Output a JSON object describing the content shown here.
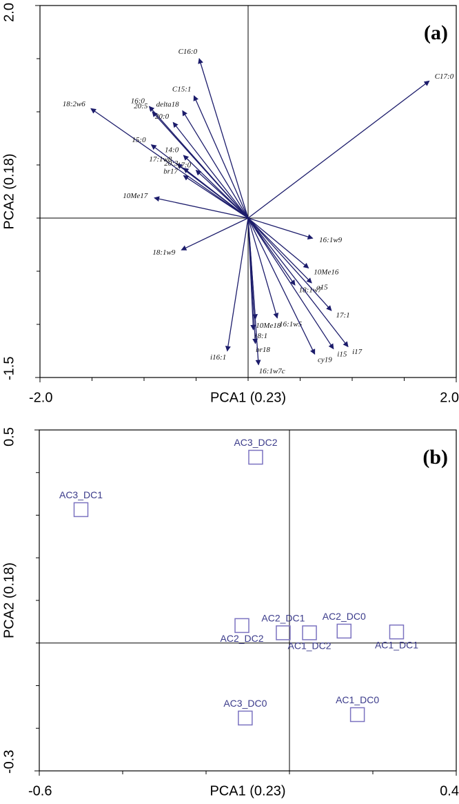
{
  "chart_data": [
    {
      "type": "biplot",
      "annotation": "(a)",
      "xlabel": "PCA1 (0.23)",
      "ylabel": "PCA2 (0.18)",
      "color": "#1c1c6b",
      "xlim": [
        -2,
        2
      ],
      "ylim": [
        -1.5,
        2
      ],
      "xticks": [
        {
          "value": -2,
          "label": "-2.0"
        },
        {
          "value": 2,
          "label": "2.0"
        }
      ],
      "yticks": [
        {
          "value": -1.5,
          "label": "-1.5"
        },
        {
          "value": 2,
          "label": "2.0"
        }
      ],
      "xminorticks": [
        -1.5,
        -1,
        -0.5,
        0,
        0.5,
        1,
        1.5
      ],
      "yminorticks": [
        -1,
        -0.5,
        0,
        0.5,
        1,
        1.5
      ],
      "names": [
        "C16:0",
        "C17:0",
        "C15:1",
        "16:0",
        "20:5",
        "delta18",
        "18:2w6",
        "20:0",
        "15:0",
        "14:0",
        "17:1w8",
        "20:3",
        "17:0",
        "br17",
        "10Me17",
        "18:1w9",
        "16:1w9",
        "10Me16",
        "a15",
        "18:1w7",
        "17:1",
        "10Me18",
        "16:1w5",
        "18:1",
        "br18",
        "16:1w7c",
        "cy19",
        "i15",
        "i17",
        "i16:1"
      ],
      "x": [
        -0.47,
        1.74,
        -0.52,
        -0.95,
        -0.92,
        -0.63,
        -1.51,
        -0.72,
        -0.93,
        -0.62,
        -0.68,
        -0.62,
        -0.5,
        -0.62,
        -0.9,
        -0.64,
        0.62,
        0.58,
        0.61,
        0.45,
        0.8,
        0.07,
        0.28,
        0.05,
        0.07,
        0.1,
        0.64,
        0.82,
        0.96,
        -0.2
      ],
      "y": [
        1.5,
        1.29,
        1.15,
        1.05,
        1.0,
        1.01,
        1.03,
        0.9,
        0.69,
        0.59,
        0.51,
        0.47,
        0.45,
        0.4,
        0.19,
        -0.3,
        -0.19,
        -0.47,
        -0.61,
        -0.63,
        -0.87,
        -0.95,
        -0.94,
        -1.05,
        -1.18,
        -1.38,
        -1.28,
        -1.23,
        -1.21,
        -1.25
      ]
    },
    {
      "type": "scatter",
      "annotation": "(b)",
      "xlabel": "PCA1 (0.23)",
      "ylabel": "PCA2 (0.18)",
      "color": "#7b72c0",
      "xlim": [
        -0.6,
        0.4
      ],
      "ylim": [
        -0.3,
        0.5
      ],
      "xticks": [
        -0.6,
        0.4
      ],
      "yticks": [
        -0.3,
        0.5
      ],
      "xminorticks": [
        -0.4,
        -0.2,
        0,
        0.2
      ],
      "yminorticks": [
        -0.2,
        -0.1,
        0,
        0.1,
        0.2,
        0.3,
        0.4
      ],
      "names": [
        "AC3_DC2",
        "AC3_DC1",
        "AC2_DC2",
        "AC2_DC1",
        "AC1_DC2",
        "AC2_DC0",
        "AC1_DC1",
        "AC3_DC0",
        "AC1_DC0"
      ],
      "x": [
        -0.081,
        -0.5,
        -0.114,
        -0.015,
        0.048,
        0.131,
        0.257,
        -0.106,
        0.163
      ],
      "y": [
        0.436,
        0.313,
        0.041,
        0.024,
        0.024,
        0.028,
        0.026,
        -0.176,
        -0.168
      ]
    }
  ]
}
